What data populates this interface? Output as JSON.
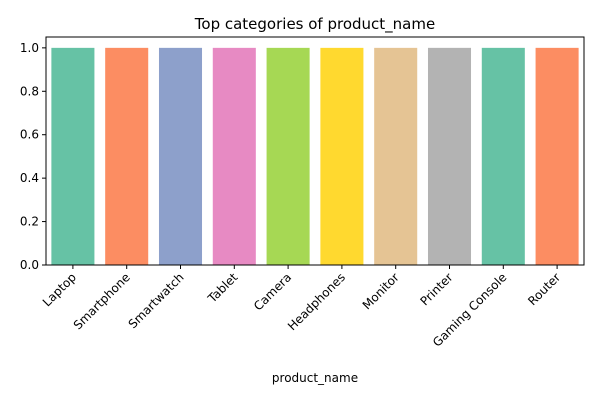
{
  "chart_data": {
    "type": "bar",
    "title": "Top categories of product_name",
    "xlabel": "product_name",
    "ylabel": "",
    "categories": [
      "Laptop",
      "Smartphone",
      "Smartwatch",
      "Tablet",
      "Camera",
      "Headphones",
      "Monitor",
      "Printer",
      "Gaming Console",
      "Router"
    ],
    "values": [
      1,
      1,
      1,
      1,
      1,
      1,
      1,
      1,
      1,
      1
    ],
    "colors": [
      "#66c2a5",
      "#fc8d62",
      "#8da0cb",
      "#e78ac3",
      "#a6d854",
      "#ffd92f",
      "#e5c494",
      "#b3b3b3",
      "#66c2a5",
      "#fc8d62"
    ],
    "ylim": [
      0,
      1.05
    ],
    "yticks": [
      "0.0",
      "0.2",
      "0.4",
      "0.6",
      "0.8",
      "1.0"
    ],
    "grid": false,
    "legend": "none"
  }
}
